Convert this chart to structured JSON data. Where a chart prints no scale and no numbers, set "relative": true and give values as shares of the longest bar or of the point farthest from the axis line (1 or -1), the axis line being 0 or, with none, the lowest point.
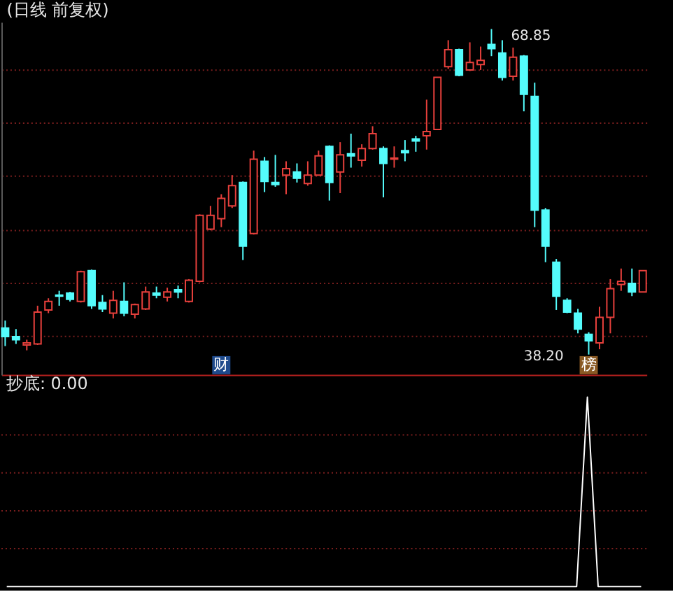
{
  "chart_data": [
    {
      "type": "candlestick",
      "title": "(日线 前复权)",
      "categories": [
        null,
        null,
        null,
        null,
        null,
        null,
        null,
        null,
        null,
        null,
        null,
        null,
        null,
        null,
        null,
        null,
        null,
        null,
        null,
        null,
        null,
        null,
        null,
        null,
        null,
        null,
        null,
        null,
        null,
        null,
        null,
        null,
        null,
        null,
        null,
        null,
        null,
        null,
        null,
        null,
        null,
        null,
        null,
        null,
        null,
        null,
        null,
        null,
        null,
        null,
        null,
        null,
        null,
        null,
        null,
        null,
        null,
        null,
        null,
        null
      ],
      "ohlc": [
        [
          40.7,
          41.4,
          39.0,
          39.9
        ],
        [
          39.9,
          40.6,
          39.2,
          39.6
        ],
        [
          39.1,
          39.6,
          38.6,
          39.3
        ],
        [
          39.2,
          42.8,
          39.1,
          42.2
        ],
        [
          42.4,
          43.5,
          42.1,
          43.2
        ],
        [
          43.8,
          44.2,
          42.8,
          43.7
        ],
        [
          44.0,
          44.1,
          43.2,
          43.4
        ],
        [
          43.2,
          46.1,
          43.1,
          46.0
        ],
        [
          46.1,
          46.2,
          42.5,
          42.8
        ],
        [
          43.1,
          43.8,
          42.2,
          42.5
        ],
        [
          42.1,
          44.2,
          41.6,
          43.3
        ],
        [
          43.2,
          45.0,
          41.8,
          42.1
        ],
        [
          42.0,
          43.0,
          41.6,
          42.9
        ],
        [
          42.5,
          44.6,
          42.4,
          44.1
        ],
        [
          44.0,
          44.6,
          43.5,
          43.8
        ],
        [
          43.6,
          44.5,
          43.2,
          44.1
        ],
        [
          44.3,
          44.7,
          43.5,
          44.1
        ],
        [
          43.2,
          45.3,
          43.1,
          45.2
        ],
        [
          45.1,
          51.4,
          45.0,
          51.3
        ],
        [
          50.0,
          52.2,
          49.9,
          51.3
        ],
        [
          51.0,
          53.3,
          50.2,
          52.9
        ],
        [
          52.2,
          55.1,
          52.0,
          54.1
        ],
        [
          54.4,
          54.5,
          47.1,
          48.4
        ],
        [
          49.6,
          57.4,
          49.5,
          56.6
        ],
        [
          56.4,
          56.8,
          53.5,
          54.5
        ],
        [
          54.4,
          57.0,
          54.0,
          54.2
        ],
        [
          55.1,
          56.4,
          53.3,
          55.7
        ],
        [
          55.4,
          56.2,
          54.4,
          54.8
        ],
        [
          54.3,
          56.4,
          54.1,
          55.1
        ],
        [
          55.1,
          57.4,
          55.1,
          56.9
        ],
        [
          57.8,
          57.9,
          52.7,
          54.4
        ],
        [
          55.4,
          58.2,
          53.4,
          57.0
        ],
        [
          57.1,
          59.0,
          55.8,
          56.9
        ],
        [
          56.5,
          58.0,
          55.9,
          57.6
        ],
        [
          57.6,
          59.7,
          57.5,
          59.0
        ],
        [
          57.6,
          57.8,
          53.0,
          56.2
        ],
        [
          56.6,
          57.8,
          55.8,
          56.7
        ],
        [
          57.4,
          58.4,
          56.4,
          57.2
        ],
        [
          58.5,
          58.8,
          57.3,
          58.3
        ],
        [
          58.8,
          62.2,
          57.5,
          59.2
        ],
        [
          59.4,
          64.3,
          59.4,
          64.3
        ],
        [
          65.3,
          67.8,
          65.1,
          66.9
        ],
        [
          66.9,
          67.0,
          64.4,
          64.5
        ],
        [
          65.0,
          67.6,
          64.9,
          65.7
        ],
        [
          65.5,
          67.2,
          65.0,
          65.9
        ],
        [
          67.4,
          68.85,
          66.3,
          67.0
        ],
        [
          66.6,
          67.8,
          64.0,
          64.3
        ],
        [
          64.4,
          67.1,
          64.0,
          66.2
        ],
        [
          66.3,
          66.4,
          61.1,
          62.7
        ],
        [
          62.5,
          63.8,
          50.2,
          51.8
        ],
        [
          51.8,
          52.0,
          46.9,
          48.4
        ],
        [
          46.9,
          47.2,
          42.4,
          43.7
        ],
        [
          43.3,
          43.5,
          42.1,
          42.2
        ],
        [
          42.1,
          42.5,
          40.2,
          40.6
        ],
        [
          40.1,
          40.3,
          38.2,
          39.5
        ],
        [
          39.3,
          42.7,
          38.7,
          41.7
        ],
        [
          41.7,
          45.3,
          40.2,
          44.4
        ],
        [
          44.8,
          46.3,
          44.2,
          45.1
        ],
        [
          44.9,
          46.3,
          43.7,
          44.1
        ],
        [
          44.1,
          46.1,
          44.1,
          46.1
        ]
      ],
      "colors": [
        "#54fcfc",
        "#54fcfc",
        "#e8403c",
        "#e8403c",
        "#e8403c",
        "#54fcfc",
        "#54fcfc",
        "#e8403c",
        "#54fcfc",
        "#54fcfc",
        "#e8403c",
        "#54fcfc",
        "#e8403c",
        "#e8403c",
        "#54fcfc",
        "#e8403c",
        "#54fcfc",
        "#e8403c",
        "#e8403c",
        "#e8403c",
        "#e8403c",
        "#e8403c",
        "#54fcfc",
        "#e8403c",
        "#54fcfc",
        "#54fcfc",
        "#e8403c",
        "#54fcfc",
        "#e8403c",
        "#e8403c",
        "#54fcfc",
        "#e8403c",
        "#54fcfc",
        "#e8403c",
        "#e8403c",
        "#54fcfc",
        "#e8403c",
        "#54fcfc",
        "#54fcfc",
        "#e8403c",
        "#e8403c",
        "#e8403c",
        "#54fcfc",
        "#e8403c",
        "#e8403c",
        "#54fcfc",
        "#54fcfc",
        "#e8403c",
        "#54fcfc",
        "#54fcfc",
        "#54fcfc",
        "#54fcfc",
        "#54fcfc",
        "#54fcfc",
        "#54fcfc",
        "#e8403c",
        "#e8403c",
        "#e8403c",
        "#54fcfc",
        "#e8403c"
      ],
      "ylim": [
        36.3,
        69.5
      ],
      "yticks": [
        {
          "value": 40,
          "label": null
        },
        {
          "value": 45,
          "label": null
        },
        {
          "value": 50,
          "label": null
        },
        {
          "value": 55,
          "label": null
        },
        {
          "value": 60,
          "label": null
        },
        {
          "value": 65,
          "label": null
        }
      ],
      "grid": "y",
      "tick_labels": false,
      "annotations": [
        "68.85",
        "38.20"
      ],
      "series": [
        {
          "type": "scatter",
          "marker": "square",
          "values": [
            null,
            null,
            null,
            null,
            null,
            null,
            null,
            null,
            null,
            null,
            null,
            null,
            null,
            null,
            null,
            null,
            null,
            null,
            null,
            null,
            37.2,
            null,
            null,
            null,
            null,
            null,
            null,
            null,
            null,
            null,
            null,
            null,
            null,
            null,
            null,
            null,
            null,
            null,
            null,
            null,
            null,
            null,
            null,
            null,
            null,
            null,
            null,
            null,
            null,
            null,
            null,
            null,
            null,
            null,
            37.2,
            null,
            null,
            null,
            null,
            null
          ],
          "colors": [
            null,
            null,
            null,
            null,
            null,
            null,
            null,
            null,
            null,
            null,
            null,
            null,
            null,
            null,
            null,
            null,
            null,
            null,
            null,
            null,
            "#1e4a8c",
            null,
            null,
            null,
            null,
            null,
            null,
            null,
            null,
            null,
            null,
            null,
            null,
            null,
            null,
            null,
            null,
            null,
            null,
            null,
            null,
            null,
            null,
            null,
            null,
            null,
            null,
            null,
            null,
            null,
            null,
            null,
            null,
            null,
            "#8a5a24",
            null,
            null,
            null,
            null,
            null
          ],
          "value_labels": [
            null,
            null,
            null,
            null,
            null,
            null,
            null,
            null,
            null,
            null,
            null,
            null,
            null,
            null,
            null,
            null,
            null,
            null,
            null,
            null,
            "财",
            null,
            null,
            null,
            null,
            null,
            null,
            null,
            null,
            null,
            null,
            null,
            null,
            null,
            null,
            null,
            null,
            null,
            null,
            null,
            null,
            null,
            null,
            null,
            null,
            null,
            null,
            null,
            null,
            null,
            null,
            null,
            null,
            null,
            "榜",
            null,
            null,
            null,
            null,
            null
          ]
        }
      ]
    },
    {
      "type": "line",
      "title": "抄底: 0.00",
      "categories": [
        null,
        null,
        null,
        null,
        null,
        null,
        null,
        null,
        null,
        null,
        null,
        null,
        null,
        null,
        null,
        null,
        null,
        null,
        null,
        null,
        null,
        null,
        null,
        null,
        null,
        null,
        null,
        null,
        null,
        null,
        null,
        null,
        null,
        null,
        null,
        null,
        null,
        null,
        null,
        null,
        null,
        null,
        null,
        null,
        null,
        null,
        null,
        null,
        null,
        null,
        null,
        null,
        null,
        null,
        null,
        null,
        null,
        null,
        null,
        null
      ],
      "relative": true,
      "tick_labels": false,
      "ref_lines": [
        {
          "axis": "y",
          "value": 0.2,
          "color": "#7a1e1e",
          "line_style": "dotted"
        },
        {
          "axis": "y",
          "value": 0.4,
          "color": "#7a1e1e",
          "line_style": "dotted"
        },
        {
          "axis": "y",
          "value": 0.6,
          "color": "#7a1e1e",
          "line_style": "dotted"
        },
        {
          "axis": "y",
          "value": 0.8,
          "color": "#7a1e1e",
          "line_style": "dotted"
        }
      ],
      "series": [
        {
          "color": "#ffffff",
          "values": [
            0,
            0,
            0,
            0,
            0,
            0,
            0,
            0,
            0,
            0,
            0,
            0,
            0,
            0,
            0,
            0,
            0,
            0,
            0,
            0,
            0,
            0,
            0,
            0,
            0,
            0,
            0,
            0,
            0,
            0,
            0,
            0,
            0,
            0,
            0,
            0,
            0,
            0,
            0,
            0,
            0,
            0,
            0,
            0,
            0,
            0,
            0,
            0,
            0,
            0,
            0,
            0,
            0,
            0,
            1,
            0,
            0,
            0,
            0,
            0
          ]
        }
      ]
    }
  ]
}
